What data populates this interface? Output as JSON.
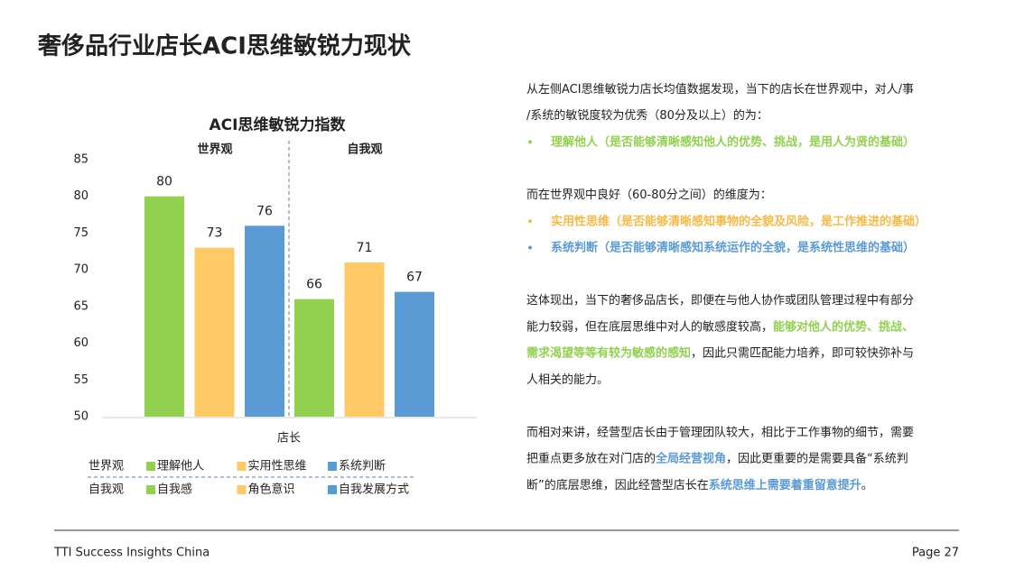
{
  "title": "奢侈品行业店长ACI思维敏锐力现状",
  "chart_data": {
    "type": "bar",
    "title": "ACI思维敏锐力指数",
    "xlabel": "店长",
    "groups": [
      {
        "name": "世界观",
        "series": [
          {
            "name": "理解他人",
            "color": "#92d050",
            "values": [
              80
            ]
          },
          {
            "name": "实用性思维",
            "color": "#ffc966",
            "values": [
              73
            ]
          },
          {
            "name": "系统判断",
            "color": "#5b9bd5",
            "values": [
              76
            ]
          }
        ]
      },
      {
        "name": "自我观",
        "series": [
          {
            "name": "自我感",
            "color": "#92d050",
            "values": [
              66
            ]
          },
          {
            "name": "角色意识",
            "color": "#ffc966",
            "values": [
              71
            ]
          },
          {
            "name": "自我发展方式",
            "color": "#5b9bd5",
            "values": [
              67
            ]
          }
        ]
      }
    ],
    "ylim": [
      50,
      85
    ],
    "yticks": [
      50,
      55,
      60,
      65,
      70,
      75,
      80,
      85
    ],
    "grid": false
  },
  "text_blocks": [
    [
      {
        "segments": [
          {
            "text": "从左侧ACI思维敏锐力店长均值数据发现，当下的店长在世界观中，对人/事"
          }
        ]
      },
      {
        "segments": [
          {
            "text": "/系统的敏锐度较为优秀（80分及以上）的为："
          }
        ]
      },
      {
        "bullet": true,
        "segments": [
          {
            "text": "理解他人（是否能够清晰感知他人的优势、挑战，是用人为贤的基础）",
            "color": "#92d050",
            "bold": true
          }
        ]
      }
    ],
    [
      {
        "segments": [
          {
            "text": "而在世界观中良好（60-80分之间）的维度为："
          }
        ]
      },
      {
        "bullet": true,
        "segments": [
          {
            "text": "实用性思维（是否能够清晰感知事物的全貌及风险，是工作推进的基础）",
            "color": "#f7b944",
            "bold": true
          }
        ]
      },
      {
        "bullet": true,
        "segments": [
          {
            "text": "系统判断（是否能够清晰感知系统运作的全貌，是系统性思维的基础）",
            "color": "#5b9bd5",
            "bold": true
          }
        ]
      }
    ],
    [
      {
        "segments": [
          {
            "text": "这体现出，当下的奢侈品店长，即便在与他人协作或团队管理过程中有部分"
          }
        ]
      },
      {
        "segments": [
          {
            "text": "能力较弱，但在底层思维中对人的敏感度较高，"
          },
          {
            "text": "能够对他人的优势、挑战、",
            "color": "#92d050",
            "bold": true
          }
        ]
      },
      {
        "segments": [
          {
            "text": "需求渴望等等有较为敏感的感知",
            "color": "#92d050",
            "bold": true
          },
          {
            "text": "，因此只需匹配能力培养，即可较快弥补与"
          }
        ]
      },
      {
        "segments": [
          {
            "text": "人相关的能力。"
          }
        ]
      }
    ],
    [
      {
        "segments": [
          {
            "text": "而相对来讲，经营型店长由于管理团队较大，相比于工作事物的细节，需要"
          }
        ]
      },
      {
        "segments": [
          {
            "text": "把重点更多放在对门店的"
          },
          {
            "text": "全局经营视角",
            "color": "#5b9bd5",
            "bold": true
          },
          {
            "text": "，因此更重要的是需要具备“系统判"
          }
        ]
      },
      {
        "segments": [
          {
            "text": "断”的底层思维，因此经营型店长在"
          },
          {
            "text": "系统思维上需要着重留意提升",
            "color": "#5b9bd5",
            "bold": true
          },
          {
            "text": "。"
          }
        ]
      }
    ]
  ],
  "footer": {
    "left": "TTI Success Insights China",
    "right": "Page 27"
  }
}
